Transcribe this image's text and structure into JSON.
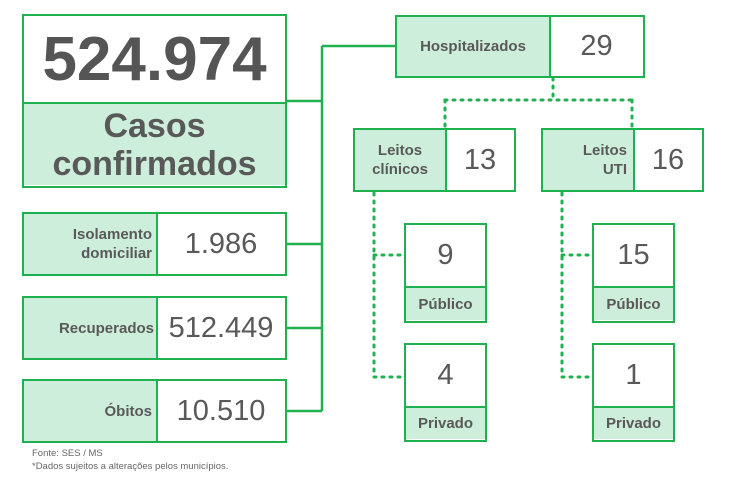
{
  "total": {
    "value": "524.974",
    "label": "Casos confirmados"
  },
  "isolamento": {
    "label_line1": "Isolamento",
    "label_line2": "domiciliar",
    "value": "1.986"
  },
  "recuperados": {
    "label": "Recuperados",
    "value": "512.449"
  },
  "obitos": {
    "label": "Óbitos",
    "value": "10.510"
  },
  "hospitalizados": {
    "label": "Hospitalizados",
    "value": "29"
  },
  "leitos_clinicos": {
    "label_line1": "Leitos",
    "label_line2": "clínicos",
    "value": "13",
    "publico": {
      "value": "9",
      "label": "Público"
    },
    "privado": {
      "value": "4",
      "label": "Privado"
    }
  },
  "leitos_uti": {
    "label_line1": "Leitos",
    "label_line2": "UTI",
    "value": "16",
    "publico": {
      "value": "15",
      "label": "Público"
    },
    "privado": {
      "value": "1",
      "label": "Privado"
    }
  },
  "footer": {
    "source": "Fonte: SES / MS",
    "disclaimer": "*Dados sujeitos a alterações pelos municípios."
  },
  "colors": {
    "border": "#1fb04f",
    "label_bg": "#cdeedb",
    "text": "#595959"
  }
}
